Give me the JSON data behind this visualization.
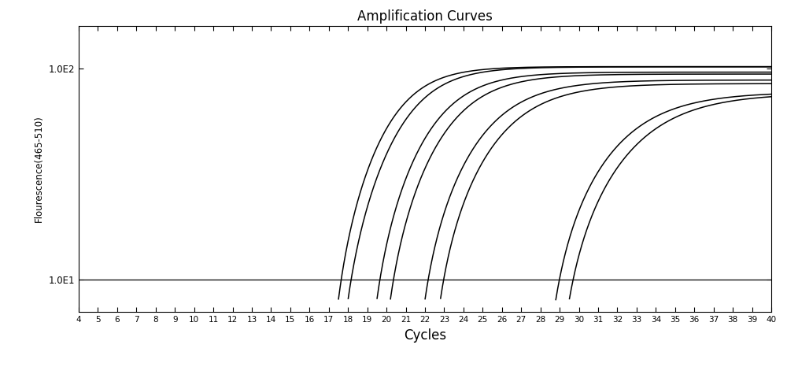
{
  "title": "Amplification Curves",
  "xlabel": "Cycles",
  "ylabel": "Flourescence(465-510)",
  "xmin": 4,
  "xmax": 40,
  "ymin": 7.0,
  "ymax": 160,
  "threshold_y": 10.0,
  "yticks": [
    10,
    100
  ],
  "ytick_labels": [
    "1.0E1",
    "1.0E2"
  ],
  "xticks": [
    4,
    5,
    6,
    7,
    8,
    9,
    10,
    11,
    12,
    13,
    14,
    15,
    16,
    17,
    18,
    19,
    20,
    21,
    22,
    23,
    24,
    25,
    26,
    27,
    28,
    29,
    30,
    31,
    32,
    33,
    34,
    35,
    36,
    37,
    38,
    39,
    40
  ],
  "curve_params": [
    {
      "L": 120,
      "k": 0.65,
      "x0": 19.5,
      "x_start": 17.5
    },
    {
      "L": 118,
      "k": 0.62,
      "x0": 20.2,
      "x_start": 18.0
    },
    {
      "L": 116,
      "k": 0.58,
      "x0": 21.5,
      "x_start": 19.5
    },
    {
      "L": 115,
      "k": 0.55,
      "x0": 22.2,
      "x_start": 20.2
    },
    {
      "L": 113,
      "k": 0.5,
      "x0": 23.8,
      "x_start": 22.0
    },
    {
      "L": 111,
      "k": 0.48,
      "x0": 24.5,
      "x_start": 22.8
    },
    {
      "L": 108,
      "k": 0.42,
      "x0": 30.2,
      "x_start": 28.8
    },
    {
      "L": 106,
      "k": 0.4,
      "x0": 31.0,
      "x_start": 29.5
    }
  ],
  "y_baseline": 8.0,
  "line_color": "#000000",
  "line_width": 1.1,
  "threshold_color": "#000000",
  "threshold_lw": 0.9,
  "bg_color": "#ffffff",
  "fig_width": 10.0,
  "fig_height": 4.66,
  "dpi": 100
}
